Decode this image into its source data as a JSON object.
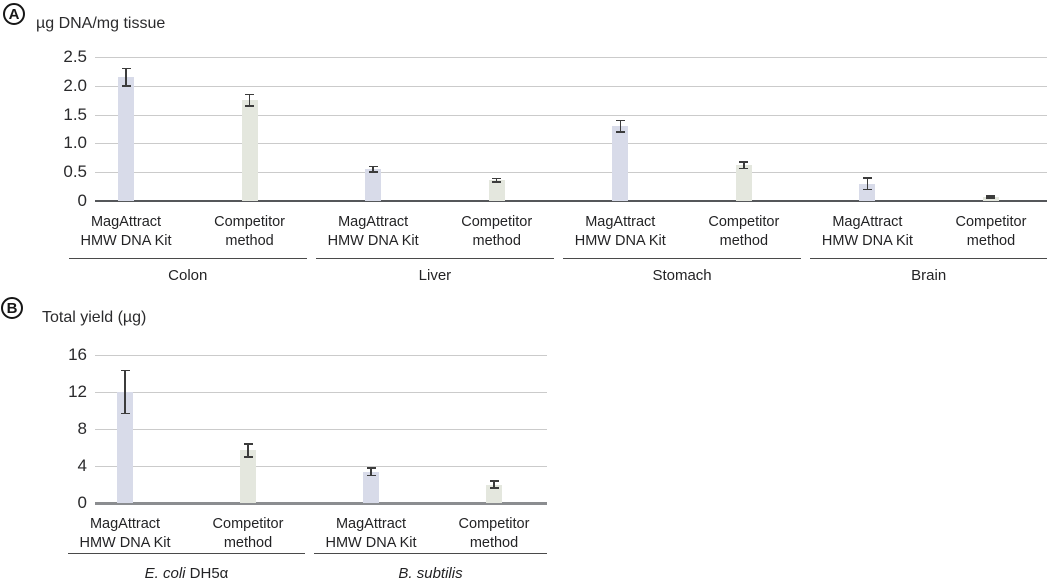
{
  "colors": {
    "magattract_bar": "#d8dbe9",
    "competitor_bar": "#e4e7de",
    "gridline": "#cbcbcb",
    "axis_zero_dark": "#55575a",
    "axis_zero_gray": "#8b8d90",
    "error_bar": "#3c3c3c",
    "text": "#2b2b2d"
  },
  "chart_data": [
    {
      "type": "bar",
      "panel": "A",
      "title": "µg DNA/mg tissue",
      "xlabel": "",
      "ylabel": "µg DNA/mg tissue",
      "categories": [
        "Colon",
        "Liver",
        "Stomach",
        "Brain"
      ],
      "categories_rich": [
        [
          {
            "t": "Colon",
            "i": false
          }
        ],
        [
          {
            "t": "Liver",
            "i": false
          }
        ],
        [
          {
            "t": "Stomach",
            "i": false
          }
        ],
        [
          {
            "t": "Brain",
            "i": false
          }
        ]
      ],
      "series": [
        {
          "name": "MagAttract HMW DNA Kit",
          "label_lines": [
            "MagAttract",
            "HMW DNA Kit"
          ],
          "color": "#d8dbe9",
          "values": [
            2.15,
            0.55,
            1.3,
            0.3
          ],
          "errors": [
            0.15,
            0.05,
            0.1,
            0.1
          ]
        },
        {
          "name": "Competitor method",
          "label_lines": [
            "Competitor",
            "method"
          ],
          "color": "#e4e7de",
          "values": [
            1.75,
            0.36,
            0.62,
            0.07
          ],
          "errors": [
            0.1,
            0.03,
            0.06,
            0.02
          ]
        }
      ],
      "ylim": [
        0,
        2.5
      ],
      "yticks": [
        "0",
        "0.5",
        "1.0",
        "1.5",
        "2.0",
        "2.5"
      ],
      "grid": true,
      "legend": false
    },
    {
      "type": "bar",
      "panel": "B",
      "title": "Total yield (µg)",
      "xlabel": "",
      "ylabel": "Total yield (µg)",
      "categories": [
        "E. coli DH5α",
        "B. subtilis"
      ],
      "categories_rich": [
        [
          {
            "t": "E. coli",
            "i": true
          },
          {
            "t": " DH5α",
            "i": false
          }
        ],
        [
          {
            "t": "B. subtilis",
            "i": true
          }
        ]
      ],
      "series": [
        {
          "name": "MagAttract HMW DNA Kit",
          "label_lines": [
            "MagAttract",
            "HMW DNA Kit"
          ],
          "color": "#d8dbe9",
          "values": [
            12,
            3.4
          ],
          "errors": [
            2.3,
            0.4
          ]
        },
        {
          "name": "Competitor method",
          "label_lines": [
            "Competitor",
            "method"
          ],
          "color": "#e4e7de",
          "values": [
            5.7,
            2.0
          ],
          "errors": [
            0.7,
            0.4
          ]
        }
      ],
      "ylim": [
        0,
        16
      ],
      "yticks": [
        "0",
        "4",
        "8",
        "12",
        "16"
      ],
      "grid": true,
      "legend": false
    }
  ]
}
